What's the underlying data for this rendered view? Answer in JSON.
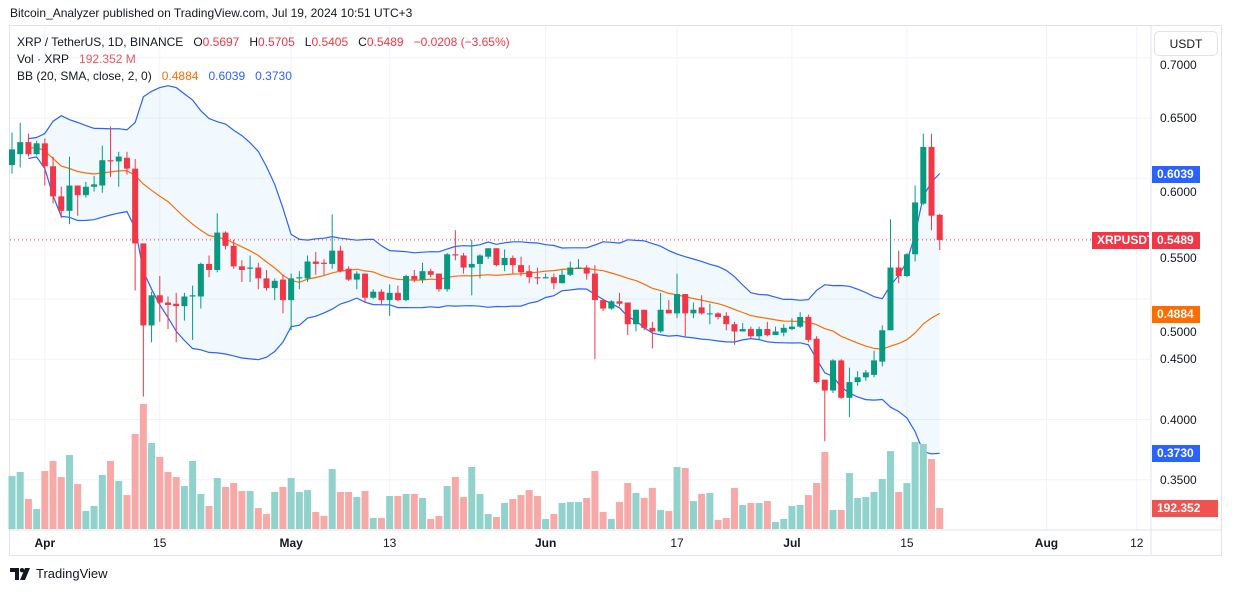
{
  "publish_line": "Bitcoin_Analyzer published on TradingView.com, Jul 19, 2024 10:51 UTC+3",
  "legend": {
    "symbol": "XRP / TetherUS, 1D, BINANCE",
    "o_label": "O",
    "o": "0.5697",
    "h_label": "H",
    "h": "0.5705",
    "l_label": "L",
    "l": "0.5405",
    "c_label": "C",
    "c": "0.5489",
    "change": "−0.0208 (−3.65%)",
    "vol_label": "Vol · XRP",
    "vol": "192.352 M",
    "bb_label": "BB (20, SMA, close, 2, 0)",
    "bb_basis": "0.4884",
    "bb_upper": "0.6039",
    "bb_lower": "0.3730"
  },
  "currency_button": "USDT",
  "price_tags": {
    "symbol_tag": "XRPUSDT",
    "last": "0.5489",
    "bb_upper": "0.6039",
    "bb_basis": "0.4884",
    "bb_lower": "0.3730",
    "volume": "192.352 M"
  },
  "colors": {
    "up": "#089981",
    "down": "#F23645",
    "vol_up": "#92D2CC",
    "vol_down": "#F7A9A7",
    "bb_band": "#2962FF",
    "bb_basis": "#FF6D00"
  },
  "footer_logo": "TradingView",
  "chart_data": {
    "type": "candlestick",
    "title": "XRP / TetherUS, 1D, BINANCE",
    "ylabel": "USDT",
    "ylim": [
      0.33,
      0.71
    ],
    "y_ticks": [
      "0.7000",
      "0.6500",
      "0.6000",
      "0.5500",
      "0.5000",
      "0.4500",
      "0.4000",
      "0.3500"
    ],
    "x_ticks": [
      {
        "label": "Apr",
        "date": "2024-04-01",
        "bold": true
      },
      {
        "label": "15",
        "date": "2024-04-15",
        "bold": false
      },
      {
        "label": "May",
        "date": "2024-05-01",
        "bold": true
      },
      {
        "label": "13",
        "date": "2024-05-13",
        "bold": false
      },
      {
        "label": "Jun",
        "date": "2024-06-01",
        "bold": true
      },
      {
        "label": "17",
        "date": "2024-06-17",
        "bold": false
      },
      {
        "label": "Jul",
        "date": "2024-07-01",
        "bold": true
      },
      {
        "label": "15",
        "date": "2024-07-15",
        "bold": false
      },
      {
        "label": "Aug",
        "date": "2024-08-01",
        "bold": true
      },
      {
        "label": "12",
        "date": "2024-08-12",
        "bold": false
      }
    ],
    "grid": true,
    "indicators": [
      "Volume",
      "Bollinger Bands (20, 2)"
    ],
    "last_price": 0.5489,
    "columns": [
      "date",
      "open",
      "high",
      "low",
      "close",
      "volume_M"
    ],
    "candles": [
      [
        "2024-03-28",
        0.611,
        0.638,
        0.604,
        0.624,
        485
      ],
      [
        "2024-03-29",
        0.62,
        0.646,
        0.609,
        0.63,
        522
      ],
      [
        "2024-03-30",
        0.63,
        0.637,
        0.618,
        0.62,
        275
      ],
      [
        "2024-03-31",
        0.62,
        0.631,
        0.619,
        0.629,
        183
      ],
      [
        "2024-04-01",
        0.629,
        0.633,
        0.594,
        0.61,
        531
      ],
      [
        "2024-04-02",
        0.61,
        0.618,
        0.579,
        0.585,
        623
      ],
      [
        "2024-04-03",
        0.585,
        0.593,
        0.567,
        0.573,
        476
      ],
      [
        "2024-04-04",
        0.573,
        0.618,
        0.562,
        0.594,
        678
      ],
      [
        "2024-04-05",
        0.594,
        0.594,
        0.569,
        0.586,
        412
      ],
      [
        "2024-04-06",
        0.586,
        0.597,
        0.584,
        0.593,
        165
      ],
      [
        "2024-04-07",
        0.593,
        0.602,
        0.589,
        0.595,
        211
      ],
      [
        "2024-04-08",
        0.594,
        0.627,
        0.588,
        0.615,
        495
      ],
      [
        "2024-04-09",
        0.615,
        0.643,
        0.601,
        0.614,
        623
      ],
      [
        "2024-04-10",
        0.614,
        0.622,
        0.593,
        0.618,
        440
      ],
      [
        "2024-04-11",
        0.617,
        0.622,
        0.603,
        0.608,
        311
      ],
      [
        "2024-04-12",
        0.608,
        0.616,
        0.507,
        0.546,
        870
      ],
      [
        "2024-04-13",
        0.546,
        0.546,
        0.419,
        0.478,
        1145
      ],
      [
        "2024-04-14",
        0.478,
        0.506,
        0.464,
        0.503,
        788
      ],
      [
        "2024-04-15",
        0.503,
        0.519,
        0.481,
        0.497,
        660
      ],
      [
        "2024-04-16",
        0.497,
        0.502,
        0.475,
        0.495,
        522
      ],
      [
        "2024-04-17",
        0.496,
        0.505,
        0.464,
        0.494,
        476
      ],
      [
        "2024-04-18",
        0.494,
        0.505,
        0.482,
        0.502,
        394
      ],
      [
        "2024-04-19",
        0.502,
        0.511,
        0.466,
        0.503,
        623
      ],
      [
        "2024-04-20",
        0.502,
        0.53,
        0.492,
        0.529,
        321
      ],
      [
        "2024-04-21",
        0.529,
        0.536,
        0.518,
        0.524,
        211
      ],
      [
        "2024-04-22",
        0.524,
        0.571,
        0.522,
        0.555,
        467
      ],
      [
        "2024-04-23",
        0.555,
        0.556,
        0.541,
        0.544,
        385
      ],
      [
        "2024-04-24",
        0.544,
        0.549,
        0.525,
        0.527,
        421
      ],
      [
        "2024-04-25",
        0.527,
        0.532,
        0.514,
        0.524,
        348
      ],
      [
        "2024-04-26",
        0.525,
        0.536,
        0.514,
        0.526,
        348
      ],
      [
        "2024-04-27",
        0.526,
        0.53,
        0.508,
        0.517,
        192
      ],
      [
        "2024-04-28",
        0.517,
        0.524,
        0.507,
        0.509,
        137
      ],
      [
        "2024-04-29",
        0.509,
        0.517,
        0.499,
        0.515,
        339
      ],
      [
        "2024-04-30",
        0.516,
        0.52,
        0.488,
        0.499,
        385
      ],
      [
        "2024-05-01",
        0.499,
        0.521,
        0.474,
        0.517,
        467
      ],
      [
        "2024-05-02",
        0.517,
        0.523,
        0.508,
        0.518,
        339
      ],
      [
        "2024-05-03",
        0.517,
        0.536,
        0.514,
        0.531,
        357
      ],
      [
        "2024-05-04",
        0.531,
        0.539,
        0.52,
        0.529,
        156
      ],
      [
        "2024-05-05",
        0.53,
        0.533,
        0.52,
        0.529,
        119
      ],
      [
        "2024-05-06",
        0.529,
        0.57,
        0.525,
        0.54,
        550
      ],
      [
        "2024-05-07",
        0.54,
        0.544,
        0.522,
        0.523,
        339
      ],
      [
        "2024-05-08",
        0.525,
        0.527,
        0.515,
        0.516,
        339
      ],
      [
        "2024-05-09",
        0.516,
        0.523,
        0.508,
        0.521,
        293
      ],
      [
        "2024-05-10",
        0.521,
        0.521,
        0.497,
        0.501,
        348
      ],
      [
        "2024-05-11",
        0.501,
        0.508,
        0.5,
        0.506,
        101
      ],
      [
        "2024-05-12",
        0.506,
        0.508,
        0.495,
        0.499,
        101
      ],
      [
        "2024-05-13",
        0.499,
        0.512,
        0.486,
        0.505,
        302
      ],
      [
        "2024-05-14",
        0.505,
        0.511,
        0.498,
        0.499,
        302
      ],
      [
        "2024-05-15",
        0.499,
        0.52,
        0.498,
        0.519,
        321
      ],
      [
        "2024-05-16",
        0.519,
        0.524,
        0.514,
        0.516,
        321
      ],
      [
        "2024-05-17",
        0.516,
        0.53,
        0.513,
        0.523,
        284
      ],
      [
        "2024-05-18",
        0.523,
        0.525,
        0.518,
        0.52,
        92
      ],
      [
        "2024-05-19",
        0.521,
        0.521,
        0.506,
        0.508,
        119
      ],
      [
        "2024-05-20",
        0.508,
        0.538,
        0.506,
        0.537,
        394
      ],
      [
        "2024-05-21",
        0.537,
        0.557,
        0.532,
        0.536,
        476
      ],
      [
        "2024-05-22",
        0.536,
        0.538,
        0.521,
        0.526,
        293
      ],
      [
        "2024-05-23",
        0.526,
        0.549,
        0.503,
        0.529,
        568
      ],
      [
        "2024-05-24",
        0.529,
        0.537,
        0.517,
        0.536,
        321
      ],
      [
        "2024-05-25",
        0.535,
        0.542,
        0.533,
        0.542,
        137
      ],
      [
        "2024-05-26",
        0.542,
        0.542,
        0.527,
        0.528,
        110
      ],
      [
        "2024-05-27",
        0.528,
        0.541,
        0.523,
        0.534,
        238
      ],
      [
        "2024-05-28",
        0.534,
        0.536,
        0.521,
        0.528,
        275
      ],
      [
        "2024-05-29",
        0.528,
        0.535,
        0.519,
        0.522,
        311
      ],
      [
        "2024-05-30",
        0.523,
        0.528,
        0.513,
        0.518,
        357
      ],
      [
        "2024-05-31",
        0.518,
        0.526,
        0.512,
        0.517,
        302
      ],
      [
        "2024-06-01",
        0.517,
        0.521,
        0.517,
        0.518,
        92
      ],
      [
        "2024-06-02",
        0.518,
        0.521,
        0.508,
        0.513,
        137
      ],
      [
        "2024-06-03",
        0.513,
        0.524,
        0.513,
        0.52,
        238
      ],
      [
        "2024-06-04",
        0.52,
        0.531,
        0.519,
        0.526,
        247
      ],
      [
        "2024-06-05",
        0.525,
        0.533,
        0.525,
        0.526,
        247
      ],
      [
        "2024-06-06",
        0.526,
        0.528,
        0.516,
        0.521,
        284
      ],
      [
        "2024-06-07",
        0.521,
        0.528,
        0.45,
        0.499,
        531
      ],
      [
        "2024-06-08",
        0.499,
        0.499,
        0.49,
        0.492,
        156
      ],
      [
        "2024-06-09",
        0.492,
        0.499,
        0.491,
        0.498,
        92
      ],
      [
        "2024-06-10",
        0.498,
        0.505,
        0.494,
        0.496,
        247
      ],
      [
        "2024-06-11",
        0.497,
        0.497,
        0.47,
        0.479,
        421
      ],
      [
        "2024-06-12",
        0.479,
        0.491,
        0.473,
        0.491,
        330
      ],
      [
        "2024-06-13",
        0.491,
        0.491,
        0.474,
        0.476,
        284
      ],
      [
        "2024-06-14",
        0.476,
        0.481,
        0.459,
        0.473,
        376
      ],
      [
        "2024-06-15",
        0.473,
        0.505,
        0.472,
        0.491,
        174
      ],
      [
        "2024-06-16",
        0.491,
        0.499,
        0.488,
        0.488,
        165
      ],
      [
        "2024-06-17",
        0.488,
        0.521,
        0.484,
        0.504,
        568
      ],
      [
        "2024-06-18",
        0.504,
        0.504,
        0.469,
        0.488,
        559
      ],
      [
        "2024-06-19",
        0.488,
        0.497,
        0.484,
        0.491,
        256
      ],
      [
        "2024-06-20",
        0.493,
        0.503,
        0.487,
        0.488,
        321
      ],
      [
        "2024-06-21",
        0.488,
        0.496,
        0.479,
        0.488,
        330
      ],
      [
        "2024-06-22",
        0.488,
        0.489,
        0.483,
        0.485,
        82
      ],
      [
        "2024-06-23",
        0.486,
        0.489,
        0.474,
        0.479,
        101
      ],
      [
        "2024-06-24",
        0.479,
        0.481,
        0.462,
        0.473,
        376
      ],
      [
        "2024-06-25",
        0.473,
        0.48,
        0.473,
        0.475,
        220
      ],
      [
        "2024-06-26",
        0.475,
        0.477,
        0.467,
        0.469,
        238
      ],
      [
        "2024-06-27",
        0.469,
        0.477,
        0.466,
        0.475,
        238
      ],
      [
        "2024-06-28",
        0.475,
        0.481,
        0.469,
        0.47,
        256
      ],
      [
        "2024-06-29",
        0.47,
        0.477,
        0.47,
        0.473,
        64
      ],
      [
        "2024-06-30",
        0.472,
        0.479,
        0.469,
        0.476,
        92
      ],
      [
        "2024-07-01",
        0.475,
        0.484,
        0.474,
        0.477,
        211
      ],
      [
        "2024-07-02",
        0.477,
        0.489,
        0.476,
        0.485,
        220
      ],
      [
        "2024-07-03",
        0.485,
        0.487,
        0.464,
        0.466,
        311
      ],
      [
        "2024-07-04",
        0.467,
        0.469,
        0.43,
        0.431,
        421
      ],
      [
        "2024-07-05",
        0.433,
        0.433,
        0.382,
        0.424,
        705
      ],
      [
        "2024-07-06",
        0.424,
        0.45,
        0.422,
        0.449,
        174
      ],
      [
        "2024-07-07",
        0.449,
        0.45,
        0.417,
        0.418,
        174
      ],
      [
        "2024-07-08",
        0.418,
        0.443,
        0.402,
        0.431,
        513
      ],
      [
        "2024-07-09",
        0.431,
        0.44,
        0.428,
        0.435,
        284
      ],
      [
        "2024-07-10",
        0.435,
        0.441,
        0.432,
        0.439,
        293
      ],
      [
        "2024-07-11",
        0.437,
        0.457,
        0.435,
        0.449,
        339
      ],
      [
        "2024-07-12",
        0.448,
        0.478,
        0.444,
        0.474,
        458
      ],
      [
        "2024-07-13",
        0.474,
        0.566,
        0.474,
        0.526,
        714
      ],
      [
        "2024-07-14",
        0.526,
        0.54,
        0.513,
        0.519,
        339
      ],
      [
        "2024-07-15",
        0.519,
        0.538,
        0.518,
        0.537,
        421
      ],
      [
        "2024-07-16",
        0.537,
        0.594,
        0.531,
        0.58,
        797
      ],
      [
        "2024-07-17",
        0.579,
        0.637,
        0.578,
        0.626,
        779
      ],
      [
        "2024-07-18",
        0.626,
        0.637,
        0.557,
        0.569,
        641
      ],
      [
        "2024-07-19",
        0.5697,
        0.5705,
        0.5405,
        0.5489,
        192.352
      ]
    ]
  }
}
